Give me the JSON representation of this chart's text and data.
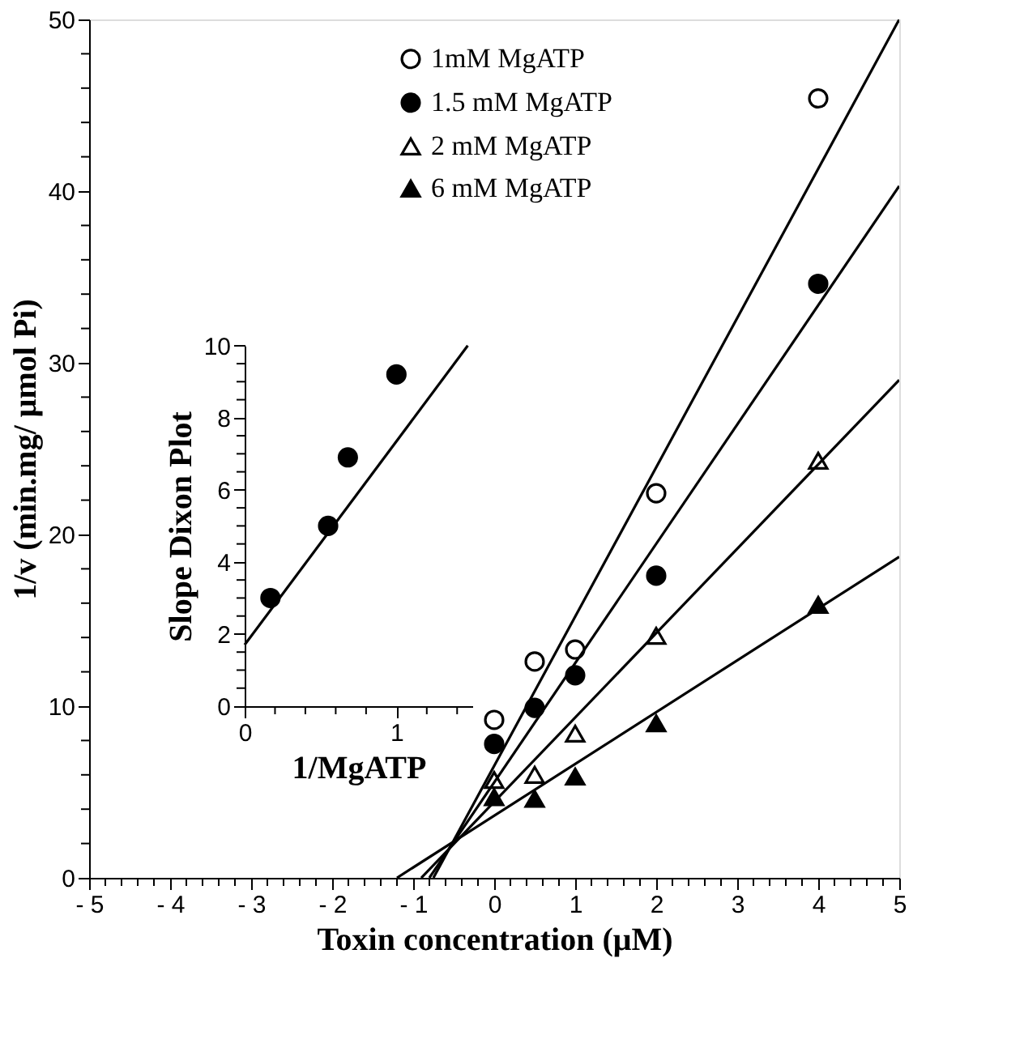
{
  "chart_data": [
    {
      "type": "scatter",
      "xlabel": "Toxin concentration (μM)",
      "ylabel": "1/v (min.mg/ μmol Pi)",
      "xlim": [
        -5,
        5
      ],
      "ylim": [
        0,
        50
      ],
      "xticks": [
        {
          "value": -5,
          "label": "- 5"
        },
        {
          "value": -4.8,
          "label": null
        },
        {
          "value": -4.6,
          "label": null
        },
        {
          "value": -4.4,
          "label": null
        },
        {
          "value": -4.2,
          "label": null
        },
        {
          "value": -4,
          "label": "- 4"
        },
        {
          "value": -3.8,
          "label": null
        },
        {
          "value": -3.6,
          "label": null
        },
        {
          "value": -3.4,
          "label": null
        },
        {
          "value": -3.2,
          "label": null
        },
        {
          "value": -3,
          "label": "- 3"
        },
        {
          "value": -2.8,
          "label": null
        },
        {
          "value": -2.6,
          "label": null
        },
        {
          "value": -2.4,
          "label": null
        },
        {
          "value": -2.2,
          "label": null
        },
        {
          "value": -2,
          "label": "- 2"
        },
        {
          "value": -1.8,
          "label": null
        },
        {
          "value": -1.6,
          "label": null
        },
        {
          "value": -1.4,
          "label": null
        },
        {
          "value": -1.2,
          "label": null
        },
        {
          "value": -1,
          "label": "- 1"
        },
        {
          "value": -0.8,
          "label": null
        },
        {
          "value": -0.6,
          "label": null
        },
        {
          "value": -0.4,
          "label": null
        },
        {
          "value": -0.2,
          "label": null
        },
        0,
        {
          "value": 0.2,
          "label": null
        },
        {
          "value": 0.4,
          "label": null
        },
        {
          "value": 0.6,
          "label": null
        },
        {
          "value": 0.8,
          "label": null
        },
        1,
        {
          "value": 1.2,
          "label": null
        },
        {
          "value": 1.4,
          "label": null
        },
        {
          "value": 1.6,
          "label": null
        },
        {
          "value": 1.8,
          "label": null
        },
        2,
        {
          "value": 2.2,
          "label": null
        },
        {
          "value": 2.4,
          "label": null
        },
        {
          "value": 2.6,
          "label": null
        },
        {
          "value": 2.8,
          "label": null
        },
        3,
        {
          "value": 3.2,
          "label": null
        },
        {
          "value": 3.4,
          "label": null
        },
        {
          "value": 3.6,
          "label": null
        },
        {
          "value": 3.8,
          "label": null
        },
        4,
        {
          "value": 4.2,
          "label": null
        },
        {
          "value": 4.4,
          "label": null
        },
        {
          "value": 4.6,
          "label": null
        },
        {
          "value": 4.8,
          "label": null
        },
        5
      ],
      "yticks": [
        0,
        {
          "value": 2,
          "label": null
        },
        {
          "value": 4,
          "label": null
        },
        {
          "value": 6,
          "label": null
        },
        {
          "value": 8,
          "label": null
        },
        10,
        {
          "value": 12,
          "label": null
        },
        {
          "value": 14,
          "label": null
        },
        {
          "value": 16,
          "label": null
        },
        {
          "value": 18,
          "label": null
        },
        20,
        {
          "value": 22,
          "label": null
        },
        {
          "value": 24,
          "label": null
        },
        {
          "value": 26,
          "label": null
        },
        {
          "value": 28,
          "label": null
        },
        30,
        {
          "value": 32,
          "label": null
        },
        {
          "value": 34,
          "label": null
        },
        {
          "value": 36,
          "label": null
        },
        {
          "value": 38,
          "label": null
        },
        40,
        {
          "value": 42,
          "label": null
        },
        {
          "value": 44,
          "label": null
        },
        {
          "value": 46,
          "label": null
        },
        {
          "value": 48,
          "label": null
        },
        50
      ],
      "grid": false,
      "legend": "top right",
      "x": [
        0,
        0.5,
        1,
        2,
        4
      ],
      "series": [
        {
          "name": "1mM MgATP",
          "type": "scatter",
          "marker": "circle",
          "color": "#ffffff",
          "values": [
            9.2,
            12.6,
            13.3,
            22.4,
            45.4
          ]
        },
        {
          "name": "1.5 mM MgATP",
          "type": "scatter",
          "marker": "circle",
          "color": "#000000",
          "values": [
            7.8,
            9.9,
            11.8,
            17.6,
            34.6
          ]
        },
        {
          "name": "2 mM MgATP",
          "type": "scatter",
          "marker": "triangle",
          "color": "#ffffff",
          "values": [
            5.7,
            6.0,
            8.4,
            14.1,
            24.3
          ]
        },
        {
          "name": "6 mM MgATP",
          "type": "scatter",
          "marker": "triangle",
          "color": "#000000",
          "values": [
            4.7,
            4.6,
            5.9,
            9.0,
            15.9
          ]
        },
        {
          "type": "line",
          "color": "#000000",
          "x": [
            -0.75,
            5
          ],
          "values": [
            0,
            50
          ]
        },
        {
          "type": "line",
          "color": "#000000",
          "x": [
            -0.8,
            5
          ],
          "values": [
            0,
            40.3
          ]
        },
        {
          "type": "line",
          "color": "#000000",
          "x": [
            -0.9,
            5
          ],
          "values": [
            0,
            29
          ]
        },
        {
          "type": "line",
          "color": "#000000",
          "x": [
            -1.2,
            5
          ],
          "values": [
            0,
            18.7
          ]
        }
      ]
    },
    {
      "type": "scatter",
      "xlabel": "1/MgATP",
      "ylabel": "Slope Dixon Plot",
      "xlim": [
        0,
        1.5
      ],
      "ylim": [
        0,
        10
      ],
      "xticks": [
        0,
        {
          "value": 0.2,
          "label": null
        },
        {
          "value": 0.4,
          "label": null
        },
        {
          "value": 0.6,
          "label": null
        },
        {
          "value": 0.8,
          "label": null
        },
        1,
        {
          "value": 1.2,
          "label": null
        },
        {
          "value": 1.4,
          "label": null
        }
      ],
      "yticks": [
        0,
        {
          "value": 0.5,
          "label": null
        },
        {
          "value": 1,
          "label": null
        },
        {
          "value": 1.5,
          "label": null
        },
        2,
        {
          "value": 2.5,
          "label": null
        },
        {
          "value": 3,
          "label": null
        },
        {
          "value": 3.5,
          "label": null
        },
        4,
        {
          "value": 4.5,
          "label": null
        },
        {
          "value": 5,
          "label": null
        },
        {
          "value": 5.5,
          "label": null
        },
        6,
        {
          "value": 6.5,
          "label": null
        },
        {
          "value": 7,
          "label": null
        },
        {
          "value": 7.5,
          "label": null
        },
        8,
        {
          "value": 8.5,
          "label": null
        },
        {
          "value": 9,
          "label": null
        },
        {
          "value": 9.5,
          "label": null
        },
        10
      ],
      "grid": false,
      "x": [
        0.17,
        0.55,
        0.68,
        1.0
      ],
      "series": [
        {
          "type": "scatter",
          "marker": "circle",
          "color": "#000000",
          "values": [
            3.0,
            5.0,
            6.9,
            9.2
          ]
        },
        {
          "type": "line",
          "color": "#000000",
          "x": [
            0,
            1.47
          ],
          "values": [
            1.7,
            10
          ]
        }
      ]
    }
  ]
}
